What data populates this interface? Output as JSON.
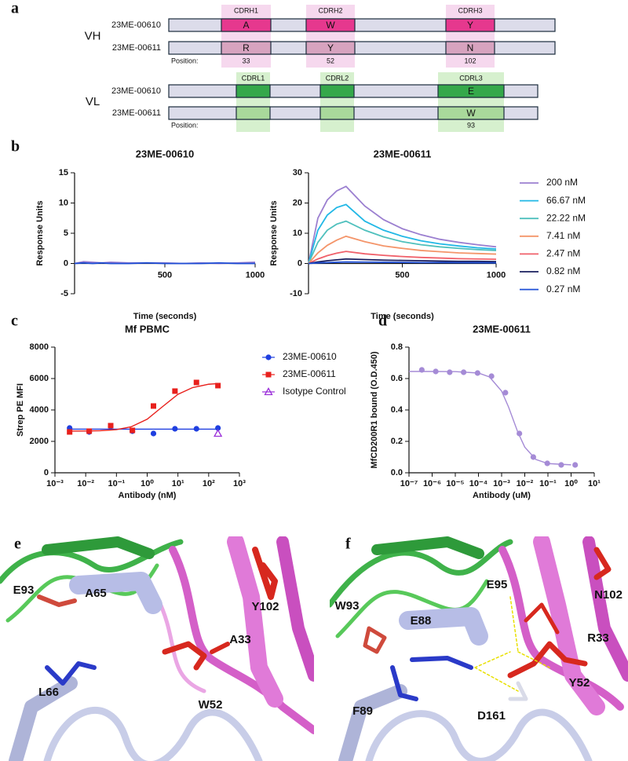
{
  "panel_labels": [
    "a",
    "b",
    "c",
    "d",
    "e",
    "f"
  ],
  "panel_a": {
    "heavy": {
      "label": "VH",
      "cdrs": [
        "CDRH1",
        "CDRH2",
        "CDRH3"
      ],
      "rows": [
        {
          "name": "23ME-00610",
          "residues": [
            "A",
            "W",
            "Y"
          ]
        },
        {
          "name": "23ME-00611",
          "residues": [
            "R",
            "Y",
            "N"
          ]
        }
      ],
      "position_label": "Position:",
      "positions": [
        33,
        52,
        102
      ]
    },
    "light": {
      "label": "VL",
      "cdrs": [
        "CDRL1",
        "CDRL2",
        "CDRL3"
      ],
      "rows": [
        {
          "name": "23ME-00610",
          "residues": [
            null,
            null,
            "E"
          ]
        },
        {
          "name": "23ME-00611",
          "residues": [
            null,
            null,
            "W"
          ]
        }
      ],
      "position_label": "Position:",
      "positions": [
        null,
        null,
        93
      ]
    }
  },
  "chart_data": [
    {
      "type": "line",
      "title": "23ME-00610",
      "y_label": "Response Units",
      "x_label": "Time (seconds)",
      "xlim": [
        0,
        1000
      ],
      "xticks": [
        500,
        1000
      ],
      "ylim": [
        -5,
        15
      ],
      "yticks": [
        -5,
        0,
        5,
        10,
        15
      ],
      "x": [
        0,
        50,
        100,
        150,
        200,
        300,
        400,
        500,
        600,
        700,
        800,
        900,
        1000
      ],
      "series": [
        {
          "color": "#9b7fd0",
          "values": [
            0,
            0.3,
            0.2,
            0.1,
            0.2,
            0.1,
            0.1,
            0.1,
            0,
            0.1,
            0,
            0.1,
            0.2
          ]
        },
        {
          "color": "#1f4fd6",
          "values": [
            0,
            0.1,
            0,
            0.1,
            0,
            0,
            0.1,
            0,
            0,
            0,
            0.1,
            0,
            0
          ]
        }
      ]
    },
    {
      "type": "line",
      "title": "23ME-00611",
      "y_label": "Response Units",
      "x_label": "Time (seconds)",
      "xlim": [
        0,
        1000
      ],
      "xticks": [
        500,
        1000
      ],
      "ylim": [
        -10,
        30
      ],
      "yticks": [
        -10,
        0,
        10,
        20,
        30
      ],
      "x": [
        0,
        50,
        100,
        150,
        200,
        300,
        400,
        500,
        600,
        700,
        800,
        900,
        1000
      ],
      "series": [
        {
          "name": "200 nM",
          "color": "#9b7fd0",
          "values": [
            0,
            15,
            21,
            24,
            25.5,
            19,
            14.5,
            11.5,
            9.5,
            8,
            7,
            6.2,
            5.5
          ]
        },
        {
          "name": "66.67 nM",
          "color": "#22b8e6",
          "values": [
            0,
            11,
            16,
            18.5,
            19.5,
            14,
            11,
            9,
            7.5,
            6.5,
            5.8,
            5.2,
            4.8
          ]
        },
        {
          "name": "22.22 nM",
          "color": "#4fc0bd",
          "values": [
            0,
            7,
            11,
            13,
            14,
            11,
            8.8,
            7.2,
            6.2,
            5.5,
            5,
            4.6,
            4.3
          ]
        },
        {
          "name": "7.41 nM",
          "color": "#f4956a",
          "values": [
            0,
            3.5,
            6,
            7.7,
            9,
            7.2,
            5.8,
            5,
            4.3,
            3.9,
            3.5,
            3.3,
            3.1
          ]
        },
        {
          "name": "2.47 nM",
          "color": "#f0606a",
          "values": [
            0,
            1.5,
            2.6,
            3.4,
            4,
            3.2,
            2.7,
            2.3,
            2,
            1.8,
            1.6,
            1.5,
            1.4
          ]
        },
        {
          "name": "0.82 nM",
          "color": "#1a1f5e",
          "values": [
            0,
            0.5,
            0.9,
            1.2,
            1.5,
            1.3,
            1.1,
            1,
            0.9,
            0.8,
            0.7,
            0.7,
            0.6
          ]
        },
        {
          "name": "0.27 nM",
          "color": "#1f4fd6",
          "values": [
            0,
            0.2,
            0.3,
            0.4,
            0.5,
            0.45,
            0.4,
            0.35,
            0.3,
            0.3,
            0.25,
            0.25,
            0.2
          ]
        }
      ]
    },
    {
      "type": "scatter",
      "title": "Mf PBMC",
      "y_label": "Strep PE MFI",
      "x_label": "Antibody (nM)",
      "xscale": "log",
      "xlim": [
        0.001,
        1000
      ],
      "xticks": [
        {
          "value": 0.001,
          "label": "10⁻³"
        },
        {
          "value": 0.01,
          "label": "10⁻²"
        },
        {
          "value": 0.1,
          "label": "10⁻¹"
        },
        {
          "value": 1,
          "label": "10⁰"
        },
        {
          "value": 10,
          "label": "10¹"
        },
        {
          "value": 100,
          "label": "10²"
        },
        {
          "value": 1000,
          "label": "10³"
        }
      ],
      "ylim": [
        0,
        8000
      ],
      "yticks": [
        0,
        2000,
        4000,
        6000,
        8000
      ],
      "series": [
        {
          "name": "23ME-00610",
          "color": "#1f3fe0",
          "marker": "circle",
          "x": [
            0.003,
            0.013,
            0.065,
            0.33,
            1.6,
            8,
            40,
            200
          ],
          "values": [
            2850,
            2600,
            2950,
            2650,
            2500,
            2800,
            2800,
            2850
          ],
          "fit_x": [
            0.003,
            200
          ],
          "fit_values": [
            2780,
            2780
          ]
        },
        {
          "name": "23ME-00611",
          "color": "#e8201c",
          "marker": "square",
          "x": [
            0.003,
            0.013,
            0.065,
            0.33,
            1.6,
            8,
            40,
            200
          ],
          "values": [
            2600,
            2650,
            3000,
            2700,
            4250,
            5200,
            5750,
            5550
          ],
          "fit_x": [
            0.003,
            0.01,
            0.03,
            0.1,
            0.3,
            1,
            3,
            10,
            30,
            100,
            200
          ],
          "fit_values": [
            2653,
            2660,
            2680,
            2748,
            2927,
            3413,
            4175,
            4996,
            5423,
            5638,
            5677
          ]
        },
        {
          "name": "Isotype Control",
          "color": "#9b30d9",
          "marker": "triangle-open",
          "x": [
            200
          ],
          "values": [
            2500
          ]
        }
      ]
    },
    {
      "type": "scatter",
      "title": "23ME-00611",
      "y_label": "MfCD200R1 bound (O.D.450)",
      "x_label": "Antibody (uM)",
      "xscale": "log",
      "xlim": [
        1e-07,
        10
      ],
      "xticks": [
        {
          "value": 1e-07,
          "label": "10⁻⁷"
        },
        {
          "value": 1e-06,
          "label": "10⁻⁶"
        },
        {
          "value": 1e-05,
          "label": "10⁻⁵"
        },
        {
          "value": 0.0001,
          "label": "10⁻⁴"
        },
        {
          "value": 0.001,
          "label": "10⁻³"
        },
        {
          "value": 0.01,
          "label": "10⁻²"
        },
        {
          "value": 0.1,
          "label": "10⁻¹"
        },
        {
          "value": 1,
          "label": "10⁰"
        },
        {
          "value": 10,
          "label": "10¹"
        }
      ],
      "ylim": [
        0,
        0.8
      ],
      "yticks": [
        {
          "value": 0,
          "label": "0.0"
        },
        0.2,
        0.4,
        0.6,
        0.8
      ],
      "series": [
        {
          "color": "#a58bd6",
          "marker": "circle",
          "x": [
            3.58e-07,
            1.43e-06,
            5.72e-06,
            2.29e-05,
            9.16e-05,
            0.000366,
            0.00146,
            0.00586,
            0.0234,
            0.0938,
            0.375,
            1.5
          ],
          "values": [
            0.655,
            0.645,
            0.64,
            0.64,
            0.635,
            0.615,
            0.51,
            0.25,
            0.1,
            0.06,
            0.05,
            0.05
          ],
          "fit_x": [
            1e-07,
            1e-06,
            1e-05,
            0.0001,
            0.0003,
            0.001,
            0.002,
            0.003,
            0.005,
            0.01,
            0.03,
            0.1,
            1
          ],
          "fit_values": [
            0.645,
            0.645,
            0.644,
            0.635,
            0.61,
            0.52,
            0.418,
            0.3475,
            0.259,
            0.1635,
            0.085,
            0.0587,
            0.0506
          ]
        }
      ]
    }
  ],
  "panel_e": {
    "labels": [
      "E93",
      "A65",
      "L66",
      "Y102",
      "A33",
      "W52"
    ]
  },
  "panel_f": {
    "labels": [
      "W93",
      "E95",
      "N102",
      "E88",
      "R33",
      "Y52",
      "F89",
      "D161"
    ]
  }
}
